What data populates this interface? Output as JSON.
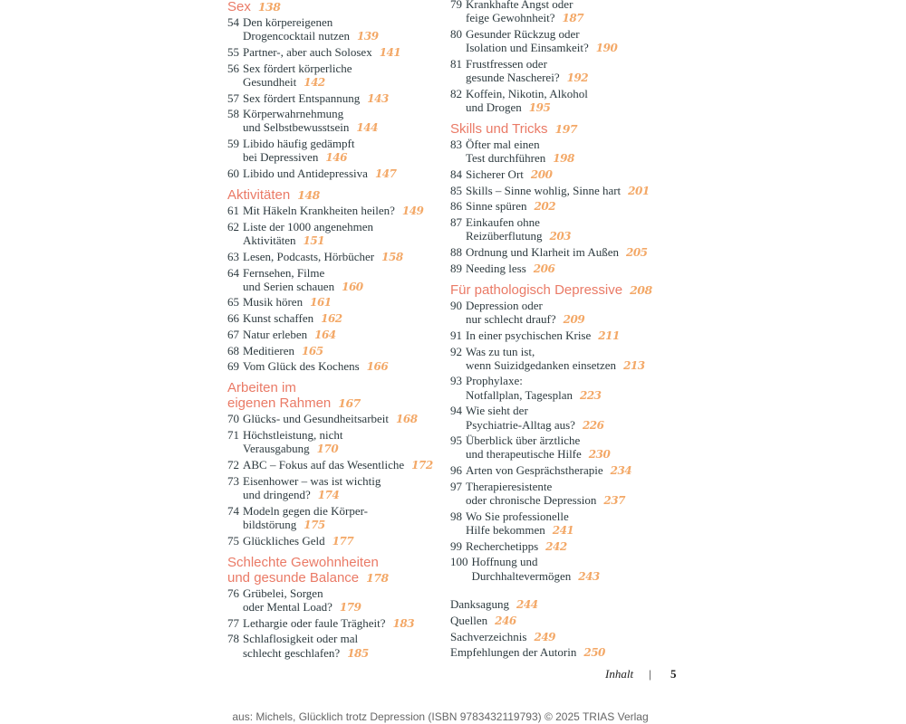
{
  "columns": [
    {
      "blocks": [
        {
          "type": "heading",
          "lines": [
            "Sex"
          ],
          "page": "138"
        },
        {
          "type": "entry",
          "num": "54",
          "lines": [
            "Den körpereigenen",
            "Drogencocktail nutzen"
          ],
          "page": "139"
        },
        {
          "type": "entry",
          "num": "55",
          "lines": [
            "Partner-, aber auch Solosex"
          ],
          "page": "141"
        },
        {
          "type": "entry",
          "num": "56",
          "lines": [
            "Sex fördert körperliche",
            "Gesundheit"
          ],
          "page": "142"
        },
        {
          "type": "entry",
          "num": "57",
          "lines": [
            "Sex fördert Entspannung"
          ],
          "page": "143"
        },
        {
          "type": "entry",
          "num": "58",
          "lines": [
            "Körperwahrnehmung",
            "und Selbstbewusstsein"
          ],
          "page": "144"
        },
        {
          "type": "entry",
          "num": "59",
          "lines": [
            "Libido häufig gedämpft",
            "bei Depressiven"
          ],
          "page": "146"
        },
        {
          "type": "entry",
          "num": "60",
          "lines": [
            "Libido und Antidepressiva"
          ],
          "page": "147"
        },
        {
          "type": "heading",
          "lines": [
            "Aktivitäten"
          ],
          "page": "148"
        },
        {
          "type": "entry",
          "num": "61",
          "lines": [
            "Mit Häkeln Krankheiten heilen?"
          ],
          "page": "149"
        },
        {
          "type": "entry",
          "num": "62",
          "lines": [
            "Liste der 1000 angenehmen",
            "Aktivitäten"
          ],
          "page": "151"
        },
        {
          "type": "entry",
          "num": "63",
          "lines": [
            "Lesen, Podcasts, Hörbücher"
          ],
          "page": "158"
        },
        {
          "type": "entry",
          "num": "64",
          "lines": [
            "Fernsehen, Filme",
            "und Serien schauen"
          ],
          "page": "160"
        },
        {
          "type": "entry",
          "num": "65",
          "lines": [
            "Musik hören"
          ],
          "page": "161"
        },
        {
          "type": "entry",
          "num": "66",
          "lines": [
            "Kunst schaffen"
          ],
          "page": "162"
        },
        {
          "type": "entry",
          "num": "67",
          "lines": [
            "Natur erleben"
          ],
          "page": "164"
        },
        {
          "type": "entry",
          "num": "68",
          "lines": [
            "Meditieren"
          ],
          "page": "165"
        },
        {
          "type": "entry",
          "num": "69",
          "lines": [
            "Vom Glück des Kochens"
          ],
          "page": "166"
        },
        {
          "type": "heading",
          "lines": [
            "Arbeiten im",
            "eigenen Rahmen"
          ],
          "page": "167"
        },
        {
          "type": "entry",
          "num": "70",
          "lines": [
            "Glücks- und Gesundheitsarbeit"
          ],
          "page": "168"
        },
        {
          "type": "entry",
          "num": "71",
          "lines": [
            "Höchstleistung, nicht",
            "Verausgabung"
          ],
          "page": "170"
        },
        {
          "type": "entry",
          "num": "72",
          "lines": [
            "ABC – Fokus auf das Wesentliche"
          ],
          "page": "172"
        },
        {
          "type": "entry",
          "num": "73",
          "lines": [
            "Eisenhower – was ist wichtig",
            "und dringend?"
          ],
          "page": "174"
        },
        {
          "type": "entry",
          "num": "74",
          "lines": [
            "Modeln gegen die Körper-",
            "bildstörung"
          ],
          "page": "175"
        },
        {
          "type": "entry",
          "num": "75",
          "lines": [
            "Glückliches Geld"
          ],
          "page": "177"
        },
        {
          "type": "heading",
          "lines": [
            "Schlechte Gewohnheiten",
            "und gesunde Balance"
          ],
          "page": "178"
        },
        {
          "type": "entry",
          "num": "76",
          "lines": [
            "Grübelei, Sorgen",
            "oder Mental Load?"
          ],
          "page": "179"
        },
        {
          "type": "entry",
          "num": "77",
          "lines": [
            "Lethargie oder faule Trägheit?"
          ],
          "page": "183"
        },
        {
          "type": "entry",
          "num": "78",
          "lines": [
            "Schlaflosigkeit oder mal",
            "schlecht geschlafen?"
          ],
          "page": "185"
        }
      ]
    },
    {
      "blocks": [
        {
          "type": "entry",
          "num": "79",
          "lines": [
            "Krankhafte Angst oder",
            "feige Gewohnheit?"
          ],
          "page": "187"
        },
        {
          "type": "entry",
          "num": "80",
          "lines": [
            "Gesunder Rückzug oder",
            "Isolation und Einsamkeit?"
          ],
          "page": "190"
        },
        {
          "type": "entry",
          "num": "81",
          "lines": [
            "Frustfressen oder",
            "gesunde Nascherei?"
          ],
          "page": "192"
        },
        {
          "type": "entry",
          "num": "82",
          "lines": [
            "Koffein, Nikotin, Alkohol",
            "und Drogen"
          ],
          "page": "195"
        },
        {
          "type": "heading",
          "lines": [
            "Skills und Tricks"
          ],
          "page": "197"
        },
        {
          "type": "entry",
          "num": "83",
          "lines": [
            "Öfter mal einen",
            "Test durchführen"
          ],
          "page": "198"
        },
        {
          "type": "entry",
          "num": "84",
          "lines": [
            "Sicherer Ort"
          ],
          "page": "200"
        },
        {
          "type": "entry",
          "num": "85",
          "lines": [
            "Skills – Sinne wohlig, Sinne hart"
          ],
          "page": "201"
        },
        {
          "type": "entry",
          "num": "86",
          "lines": [
            "Sinne spüren"
          ],
          "page": "202"
        },
        {
          "type": "entry",
          "num": "87",
          "lines": [
            "Einkaufen ohne",
            "Reizüberflutung"
          ],
          "page": "203"
        },
        {
          "type": "entry",
          "num": "88",
          "lines": [
            "Ordnung und Klarheit im Außen"
          ],
          "page": "205"
        },
        {
          "type": "entry",
          "num": "89",
          "lines": [
            "Needing less"
          ],
          "page": "206"
        },
        {
          "type": "heading",
          "lines": [
            "Für pathologisch Depressive"
          ],
          "page": "208"
        },
        {
          "type": "entry",
          "num": "90",
          "lines": [
            "Depression oder",
            "nur schlecht drauf?"
          ],
          "page": "209"
        },
        {
          "type": "entry",
          "num": "91",
          "lines": [
            "In einer psychischen Krise"
          ],
          "page": "211"
        },
        {
          "type": "entry",
          "num": "92",
          "lines": [
            "Was zu tun ist,",
            "wenn Suizidgedanken einsetzen"
          ],
          "page": "213"
        },
        {
          "type": "entry",
          "num": "93",
          "lines": [
            "Prophylaxe:",
            "Notfallplan, Tagesplan"
          ],
          "page": "223"
        },
        {
          "type": "entry",
          "num": "94",
          "lines": [
            "Wie sieht der",
            "Psychiatrie-Alltag aus?"
          ],
          "page": "226"
        },
        {
          "type": "entry",
          "num": "95",
          "lines": [
            "Überblick über ärztliche",
            "und therapeutische Hilfe"
          ],
          "page": "230"
        },
        {
          "type": "entry",
          "num": "96",
          "lines": [
            "Arten von Gesprächstherapie"
          ],
          "page": "234"
        },
        {
          "type": "entry",
          "num": "97",
          "lines": [
            "Therapieresistente",
            "oder chronische Depression"
          ],
          "page": "237"
        },
        {
          "type": "entry",
          "num": "98",
          "lines": [
            "Wo Sie professionelle",
            "Hilfe bekommen"
          ],
          "page": "241"
        },
        {
          "type": "entry",
          "num": "99",
          "lines": [
            "Recherchetipps"
          ],
          "page": "242"
        },
        {
          "type": "entry",
          "num": "100",
          "lines": [
            "Hoffnung und",
            "Durchhaltevermögen"
          ],
          "page": "243"
        },
        {
          "type": "gap"
        },
        {
          "type": "single",
          "lines": [
            "Danksagung"
          ],
          "page": "244"
        },
        {
          "type": "single",
          "lines": [
            "Quellen"
          ],
          "page": "246"
        },
        {
          "type": "single",
          "lines": [
            "Sachverzeichnis"
          ],
          "page": "249"
        },
        {
          "type": "single",
          "lines": [
            "Empfehlungen der Autorin"
          ],
          "page": "250"
        }
      ]
    }
  ],
  "footer": {
    "section": "Inhalt",
    "separator": "|",
    "page": "5"
  },
  "source": "aus: Michels, Glücklich trotz Depression (ISBN 9783432119793) © 2025 TRIAS Verlag",
  "colors": {
    "heading": "#ea7a66",
    "page_number": "#f3a867",
    "text": "#2d3a3f"
  }
}
